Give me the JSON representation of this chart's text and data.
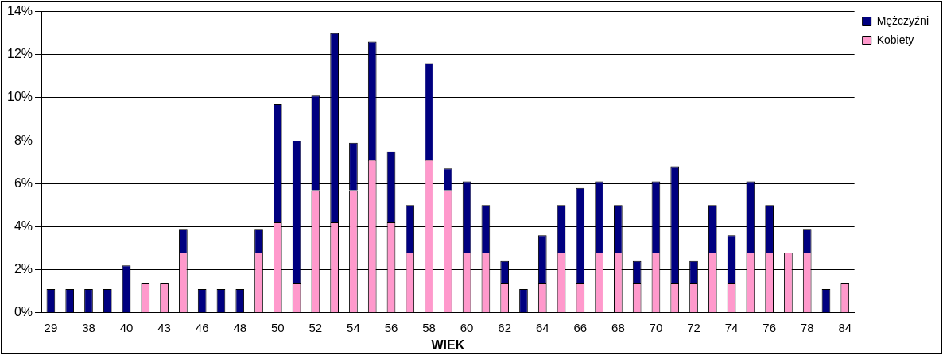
{
  "chart_data": {
    "type": "bar",
    "stacked": true,
    "xlabel": "WIEK",
    "categories": [
      "29",
      null,
      "38",
      null,
      "40",
      null,
      "43",
      null,
      "46",
      null,
      "48",
      null,
      "50",
      null,
      "52",
      null,
      "54",
      null,
      "56",
      null,
      "58",
      null,
      "60",
      null,
      "62",
      null,
      "64",
      null,
      "66",
      null,
      "68",
      null,
      "70",
      null,
      "72",
      null,
      "74",
      null,
      "76",
      null,
      "78",
      null,
      "84"
    ],
    "series": [
      {
        "name": "Kobiety",
        "color": "#ff99cc",
        "values": [
          0,
          0,
          0,
          0,
          0,
          1.4,
          1.4,
          2.8,
          0,
          0,
          0,
          2.8,
          4.2,
          1.4,
          5.7,
          4.2,
          5.7,
          7.1,
          4.2,
          2.8,
          7.1,
          5.7,
          2.8,
          2.8,
          1.4,
          0,
          1.4,
          2.8,
          1.4,
          2.8,
          2.8,
          1.4,
          2.8,
          1.4,
          1.4,
          2.8,
          1.4,
          2.8,
          2.8,
          2.8,
          2.8,
          0,
          1.4
        ]
      },
      {
        "name": "Mężczyźni",
        "color": "#000080",
        "values": [
          1.1,
          1.1,
          1.1,
          1.1,
          2.2,
          0,
          0,
          1.1,
          1.1,
          1.1,
          1.1,
          1.1,
          5.5,
          6.6,
          4.4,
          8.8,
          2.2,
          5.5,
          3.3,
          2.2,
          4.5,
          1.0,
          3.3,
          2.2,
          1.0,
          1.1,
          2.2,
          2.2,
          4.4,
          3.3,
          2.2,
          1.0,
          3.3,
          5.4,
          1.0,
          2.2,
          2.2,
          3.3,
          2.2,
          0,
          1.1,
          1.1,
          0
        ]
      }
    ],
    "ylim": [
      0,
      14
    ],
    "yticks": [
      {
        "value": 0,
        "label": "0%"
      },
      {
        "value": 2,
        "label": "2%"
      },
      {
        "value": 4,
        "label": "4%"
      },
      {
        "value": 6,
        "label": "6%"
      },
      {
        "value": 8,
        "label": "8%"
      },
      {
        "value": 10,
        "label": "10%"
      },
      {
        "value": 12,
        "label": "12%"
      },
      {
        "value": 14,
        "label": "14%"
      }
    ],
    "grid": "y",
    "legend": "top right"
  }
}
